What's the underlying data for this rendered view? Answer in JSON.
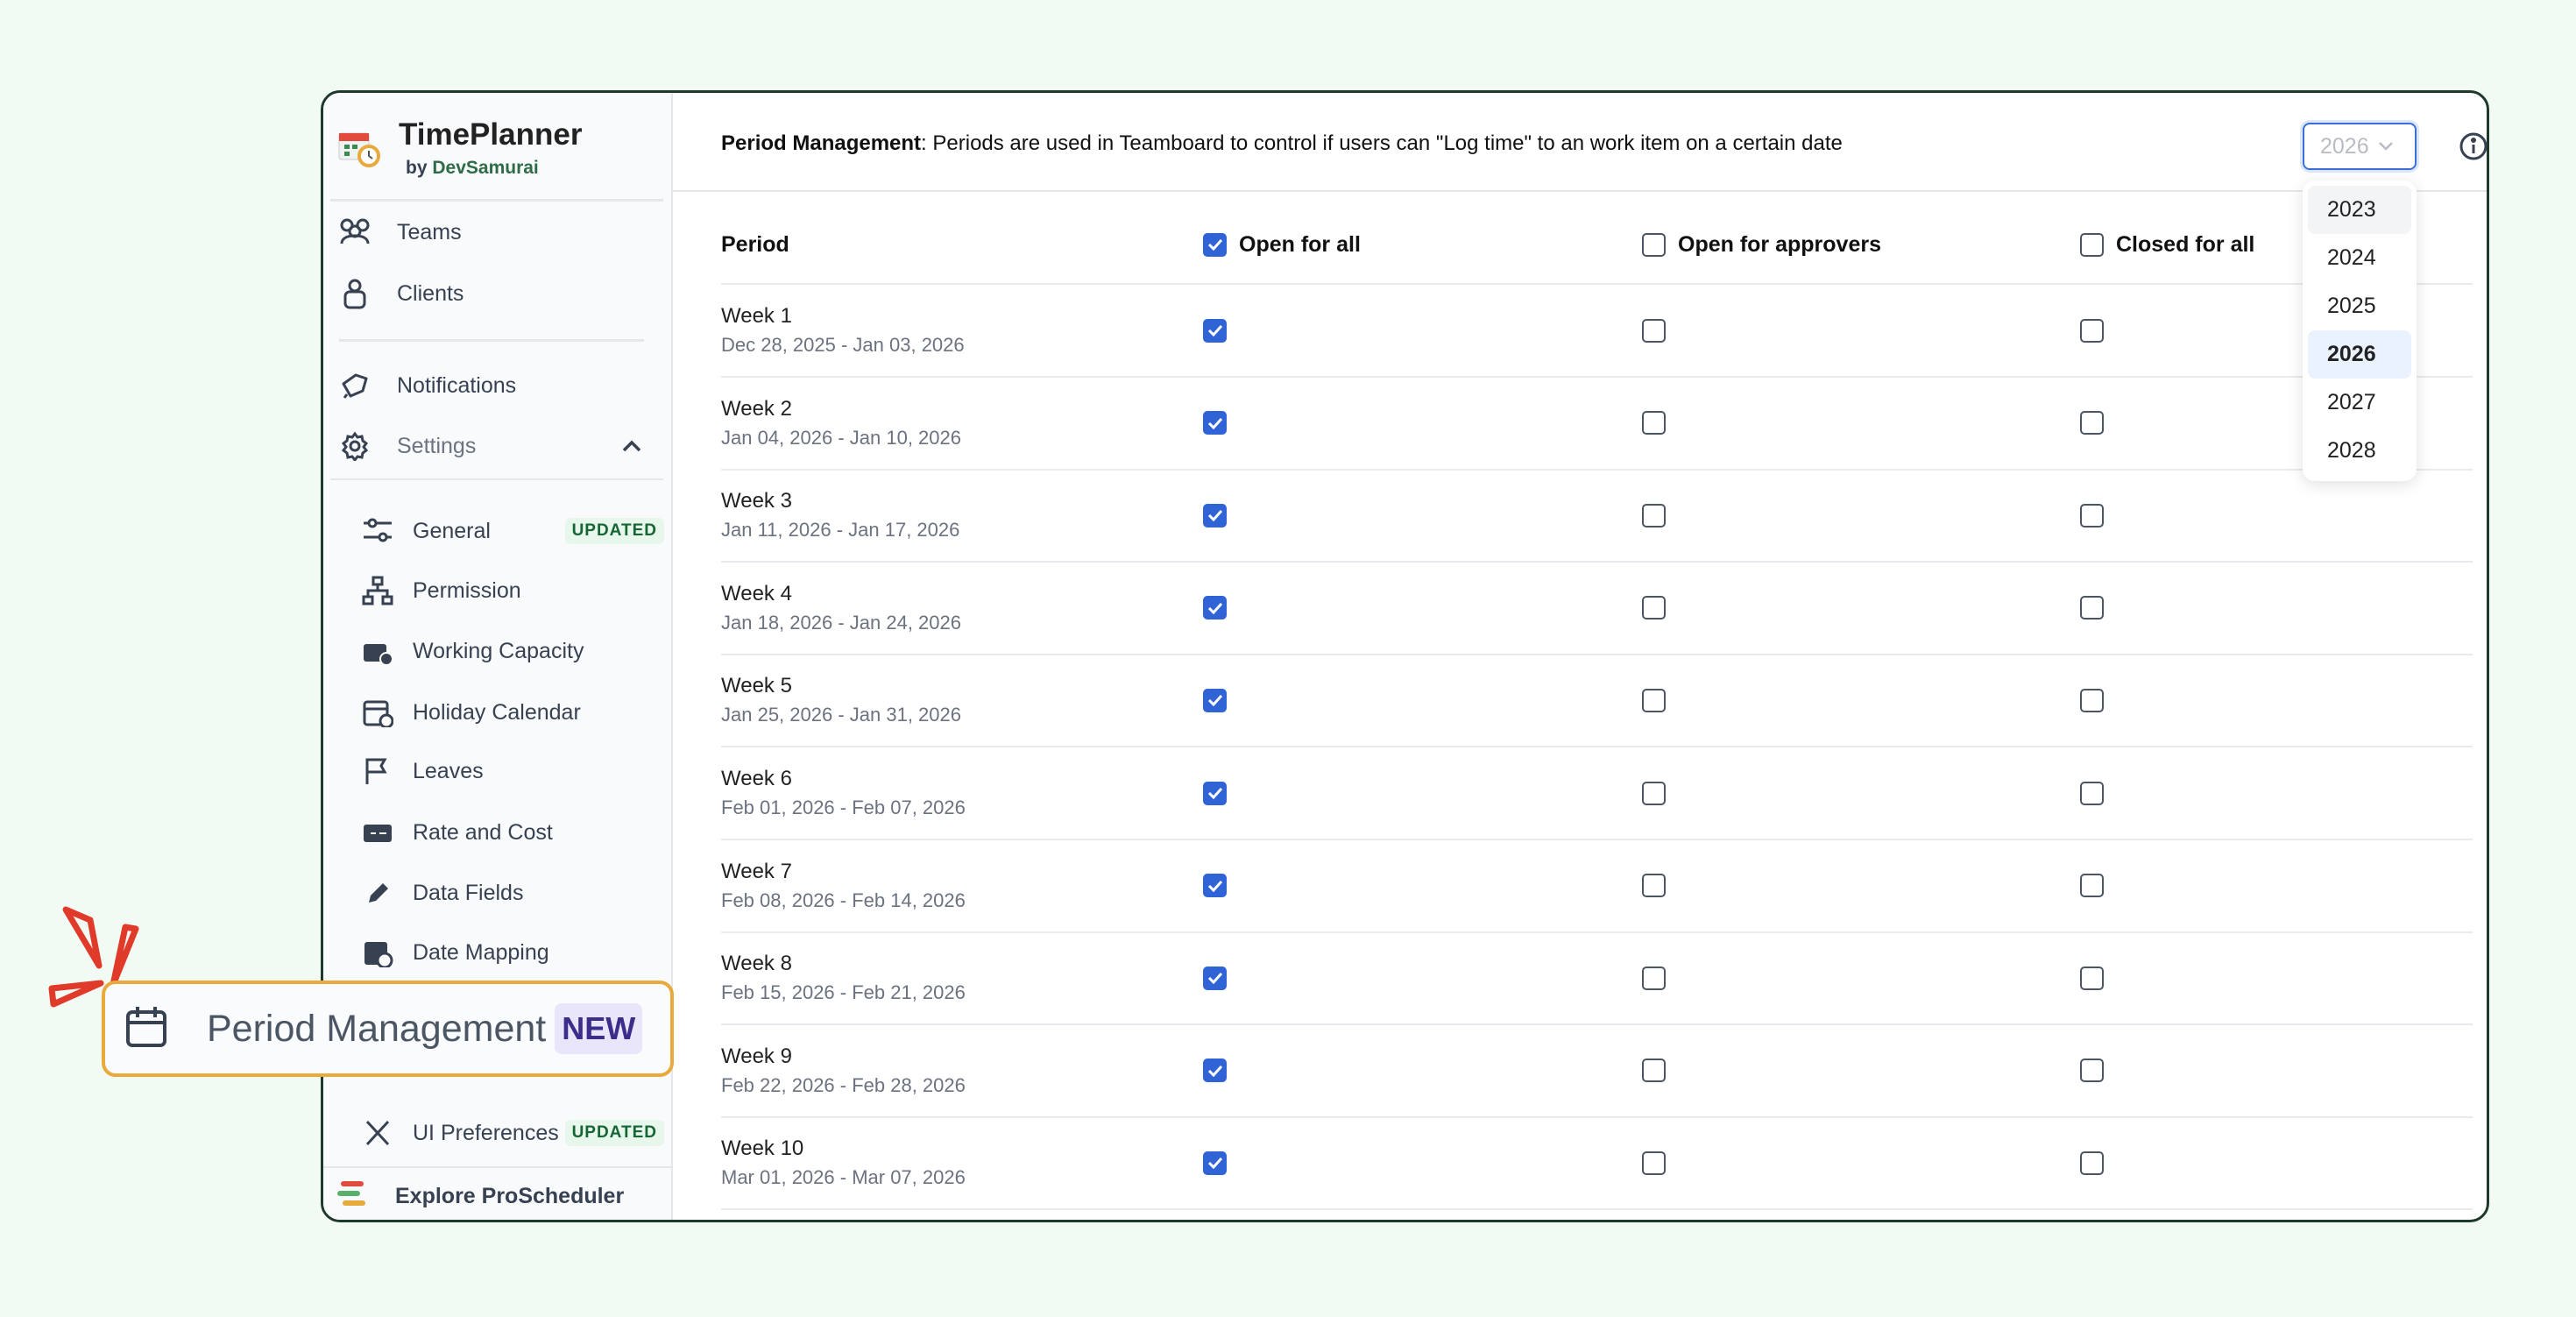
{
  "app": {
    "name": "TimePlanner",
    "by": "by",
    "vendor": "DevSamurai"
  },
  "sidebar": {
    "items": [
      {
        "label": "Teams",
        "icon": "users-icon"
      },
      {
        "label": "Clients",
        "icon": "lock-icon"
      },
      {
        "label": "Notifications",
        "icon": "bell-icon"
      },
      {
        "label": "Settings",
        "icon": "gear-icon",
        "expanded": true
      }
    ],
    "settings_items": [
      {
        "label": "General",
        "icon": "sliders-icon",
        "badge": "UPDATED"
      },
      {
        "label": "Permission",
        "icon": "hierarchy-icon"
      },
      {
        "label": "Working Capacity",
        "icon": "briefcase-clock-icon"
      },
      {
        "label": "Holiday Calendar",
        "icon": "calendar-plus-icon"
      },
      {
        "label": "Leaves",
        "icon": "flag-icon"
      },
      {
        "label": "Rate and Cost",
        "icon": "money-icon"
      },
      {
        "label": "Data Fields",
        "icon": "pencil-icon"
      },
      {
        "label": "Date Mapping",
        "icon": "calendar-link-icon"
      },
      {
        "label": "UI Preferences",
        "icon": "tools-icon",
        "badge": "UPDATED"
      }
    ],
    "explore": "Explore ProScheduler"
  },
  "callout": {
    "label": "Period Management",
    "badge": "NEW",
    "highlight_color": "#e8a93d"
  },
  "header": {
    "title": "Period Management",
    "description": ": Periods are used in Teamboard to control if users can \"Log time\" to an work item on a certain date",
    "year": "2026",
    "year_options": [
      "2023",
      "2024",
      "2025",
      "2026",
      "2027",
      "2028"
    ]
  },
  "table": {
    "columns": [
      "Period",
      "Open for all",
      "Open for approvers",
      "Closed for all"
    ],
    "header_checks": [
      true,
      false,
      false
    ],
    "rows": [
      {
        "name": "Week 1",
        "dates": "Dec 28, 2025 - Jan 03, 2026",
        "checks": [
          true,
          false,
          false
        ]
      },
      {
        "name": "Week 2",
        "dates": "Jan 04, 2026 - Jan 10, 2026",
        "checks": [
          true,
          false,
          false
        ]
      },
      {
        "name": "Week 3",
        "dates": "Jan 11, 2026 - Jan 17, 2026",
        "checks": [
          true,
          false,
          false
        ]
      },
      {
        "name": "Week 4",
        "dates": "Jan 18, 2026 - Jan 24, 2026",
        "checks": [
          true,
          false,
          false
        ]
      },
      {
        "name": "Week 5",
        "dates": "Jan 25, 2026 - Jan 31, 2026",
        "checks": [
          true,
          false,
          false
        ]
      },
      {
        "name": "Week 6",
        "dates": "Feb 01, 2026 - Feb 07, 2026",
        "checks": [
          true,
          false,
          false
        ]
      },
      {
        "name": "Week 7",
        "dates": "Feb 08, 2026 - Feb 14, 2026",
        "checks": [
          true,
          false,
          false
        ]
      },
      {
        "name": "Week 8",
        "dates": "Feb 15, 2026 - Feb 21, 2026",
        "checks": [
          true,
          false,
          false
        ]
      },
      {
        "name": "Week 9",
        "dates": "Feb 22, 2026 - Feb 28, 2026",
        "checks": [
          true,
          false,
          false
        ]
      },
      {
        "name": "Week 10",
        "dates": "Mar 01, 2026 - Mar 07, 2026",
        "checks": [
          true,
          false,
          false
        ]
      }
    ]
  },
  "colors": {
    "accent": "#2f63d6",
    "brand_green": "#2f6b47",
    "background": "#f1faf3"
  }
}
